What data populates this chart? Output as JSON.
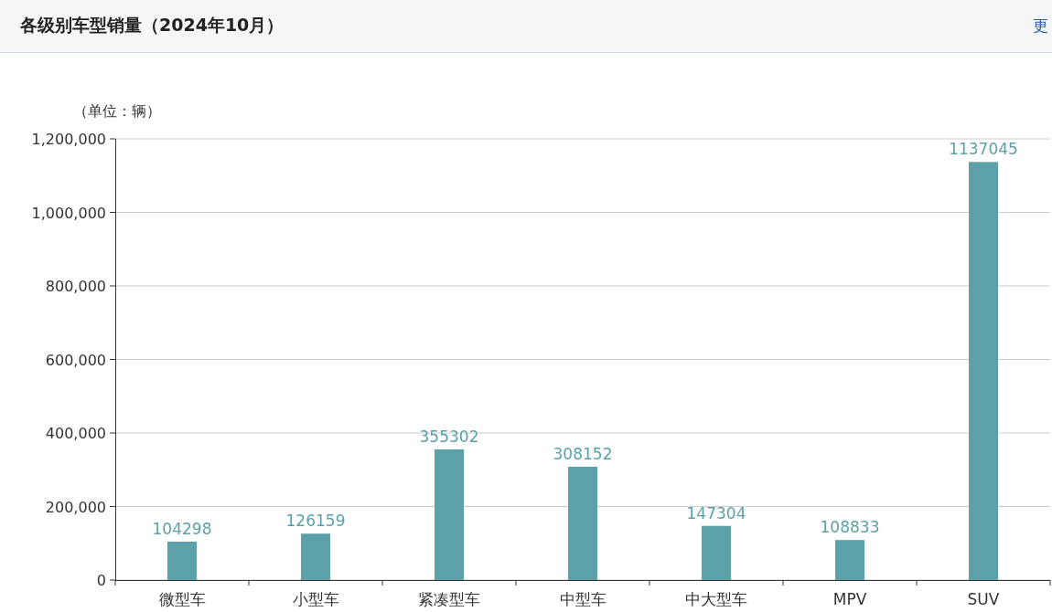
{
  "chart_data": {
    "type": "bar",
    "title": "各级别车型销量（2024年10月）",
    "ylabel": "（单位：辆）",
    "annotations": [
      "更"
    ],
    "categories": [
      "微型车",
      "小型车",
      "紧凑型车",
      "中型车",
      "中大型车",
      "MPV",
      "SUV"
    ],
    "values": [
      104298,
      126159,
      355302,
      308152,
      147304,
      108833,
      1137045
    ],
    "color": "#5ca0a8",
    "data_labels": true,
    "grid": "y",
    "ylim": [
      0,
      1200000
    ],
    "yticks": [
      0,
      {
        "value": 200000,
        "label": "200,000"
      },
      {
        "value": 400000,
        "label": "400,000"
      },
      {
        "value": 600000,
        "label": "600,000"
      },
      {
        "value": 800000,
        "label": "800,000"
      },
      {
        "value": 1000000,
        "label": "1,000,000"
      },
      {
        "value": 1200000,
        "label": "1,200,000"
      }
    ]
  }
}
